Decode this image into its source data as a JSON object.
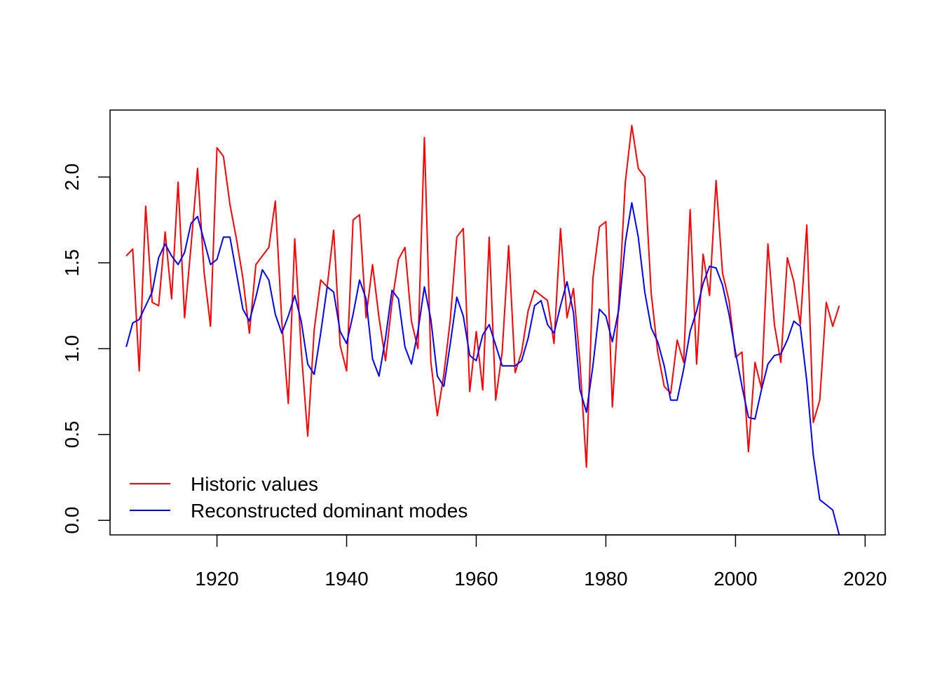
{
  "chart_data": {
    "type": "line",
    "title": "",
    "xlabel": "",
    "ylabel": "",
    "xlim": [
      1903.5,
      2023.1
    ],
    "ylim": [
      -0.085,
      2.39
    ],
    "x_ticks": [
      1920,
      1940,
      1960,
      1980,
      2000,
      2020
    ],
    "y_ticks": [
      0.0,
      0.5,
      1.0,
      1.5,
      2.0
    ],
    "x_tick_labels": [
      "1920",
      "1940",
      "1960",
      "1980",
      "2000",
      "2020"
    ],
    "y_tick_labels": [
      "0.0",
      "0.5",
      "1.0",
      "1.5",
      "2.0"
    ],
    "grid": false,
    "legend": {
      "placement": "bottom-left"
    },
    "x": [
      1906,
      1907,
      1908,
      1909,
      1910,
      1911,
      1912,
      1913,
      1914,
      1915,
      1916,
      1917,
      1918,
      1919,
      1920,
      1921,
      1922,
      1923,
      1924,
      1925,
      1926,
      1927,
      1928,
      1929,
      1930,
      1931,
      1932,
      1933,
      1934,
      1935,
      1936,
      1937,
      1938,
      1939,
      1940,
      1941,
      1942,
      1943,
      1944,
      1945,
      1946,
      1947,
      1948,
      1949,
      1950,
      1951,
      1952,
      1953,
      1954,
      1955,
      1956,
      1957,
      1958,
      1959,
      1960,
      1961,
      1962,
      1963,
      1964,
      1965,
      1966,
      1967,
      1968,
      1969,
      1970,
      1971,
      1972,
      1973,
      1974,
      1975,
      1976,
      1977,
      1978,
      1979,
      1980,
      1981,
      1982,
      1983,
      1984,
      1985,
      1986,
      1987,
      1988,
      1989,
      1990,
      1991,
      1992,
      1993,
      1994,
      1995,
      1996,
      1997,
      1998,
      1999,
      2000,
      2001,
      2002,
      2003,
      2004,
      2005,
      2006,
      2007,
      2008,
      2009,
      2010,
      2011,
      2012,
      2013,
      2014,
      2015,
      2016
    ],
    "series": [
      {
        "name": "Historic values",
        "color": "#ff0000",
        "values": [
          1.54,
          1.58,
          0.87,
          1.83,
          1.27,
          1.25,
          1.68,
          1.29,
          1.97,
          1.18,
          1.6,
          2.05,
          1.45,
          1.13,
          2.17,
          2.12,
          1.84,
          1.64,
          1.41,
          1.09,
          1.49,
          1.54,
          1.59,
          1.86,
          1.16,
          0.68,
          1.64,
          0.99,
          0.49,
          1.11,
          1.4,
          1.36,
          1.69,
          1.02,
          0.87,
          1.75,
          1.78,
          1.18,
          1.49,
          1.18,
          0.93,
          1.27,
          1.52,
          1.59,
          1.16,
          1.0,
          2.23,
          0.92,
          0.61,
          0.85,
          1.17,
          1.65,
          1.7,
          0.75,
          1.1,
          0.76,
          1.65,
          0.7,
          0.98,
          1.6,
          0.86,
          0.98,
          1.22,
          1.34,
          1.31,
          1.28,
          1.03,
          1.7,
          1.18,
          1.35,
          0.92,
          0.31,
          1.41,
          1.71,
          1.74,
          0.66,
          1.27,
          1.97,
          2.3,
          2.05,
          2.0,
          1.32,
          0.98,
          0.78,
          0.74,
          1.05,
          0.92,
          1.81,
          0.91,
          1.55,
          1.31,
          1.98,
          1.44,
          1.28,
          0.95,
          0.98,
          0.4,
          0.92,
          0.77,
          1.61,
          1.14,
          0.92,
          1.53,
          1.39,
          1.14,
          1.72,
          0.57,
          0.7,
          1.27,
          1.13,
          1.25
        ]
      },
      {
        "name": "Reconstructed dominant modes",
        "color": "#0000ff",
        "values": [
          1.01,
          1.15,
          1.17,
          1.25,
          1.33,
          1.53,
          1.61,
          1.54,
          1.49,
          1.56,
          1.73,
          1.77,
          1.63,
          1.49,
          1.52,
          1.65,
          1.65,
          1.44,
          1.23,
          1.16,
          1.3,
          1.46,
          1.4,
          1.2,
          1.09,
          1.19,
          1.31,
          1.16,
          0.91,
          0.85,
          1.09,
          1.36,
          1.33,
          1.1,
          1.03,
          1.2,
          1.4,
          1.29,
          0.94,
          0.84,
          1.06,
          1.34,
          1.29,
          1.01,
          0.91,
          1.1,
          1.36,
          1.17,
          0.84,
          0.78,
          1.03,
          1.3,
          1.19,
          0.96,
          0.93,
          1.08,
          1.14,
          1.02,
          0.9,
          0.9,
          0.9,
          0.93,
          1.06,
          1.25,
          1.28,
          1.14,
          1.09,
          1.25,
          1.39,
          1.21,
          0.76,
          0.63,
          0.9,
          1.23,
          1.19,
          1.04,
          1.23,
          1.62,
          1.85,
          1.65,
          1.33,
          1.12,
          1.04,
          0.9,
          0.7,
          0.7,
          0.88,
          1.1,
          1.22,
          1.38,
          1.48,
          1.47,
          1.37,
          1.2,
          0.98,
          0.78,
          0.6,
          0.59,
          0.76,
          0.91,
          0.96,
          0.97,
          1.05,
          1.16,
          1.13,
          0.81,
          0.38,
          0.12,
          0.09,
          0.06,
          -0.085
        ]
      }
    ]
  }
}
